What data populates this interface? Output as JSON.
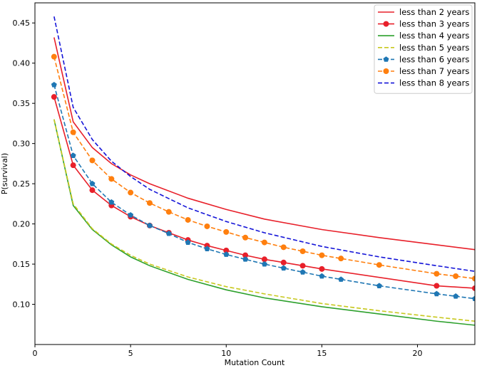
{
  "chart_data": {
    "type": "line",
    "title": "",
    "xlabel": "Mutation Count",
    "ylabel": "P(survival)",
    "xlim": [
      0,
      23
    ],
    "ylim": [
      0.05,
      0.475
    ],
    "xticks": [
      0,
      5,
      10,
      15,
      20
    ],
    "yticks": [
      0.1,
      0.15,
      0.2,
      0.25,
      0.3,
      0.35,
      0.4,
      0.45
    ],
    "grid": false,
    "legend_position": "top-right",
    "series": [
      {
        "name": "less than 2 years",
        "color": "#e8202a",
        "style": "solid",
        "marker": "none",
        "x": [
          1,
          2,
          3,
          4,
          5,
          6,
          8,
          10,
          12,
          15,
          18,
          21,
          23
        ],
        "y": [
          0.432,
          0.327,
          0.295,
          0.275,
          0.261,
          0.25,
          0.232,
          0.218,
          0.206,
          0.193,
          0.183,
          0.174,
          0.168
        ]
      },
      {
        "name": "less than 3 years",
        "color": "#e8202a",
        "style": "solid",
        "marker": "circle",
        "x": [
          1,
          2,
          3,
          4,
          5,
          6,
          7,
          8,
          9,
          10,
          11,
          12,
          13,
          14,
          15,
          21,
          23
        ],
        "y": [
          0.358,
          0.273,
          0.242,
          0.223,
          0.209,
          0.198,
          0.189,
          0.18,
          0.173,
          0.167,
          0.161,
          0.156,
          0.152,
          0.148,
          0.144,
          0.123,
          0.12
        ]
      },
      {
        "name": "less than 4 years",
        "color": "#2ca02c",
        "style": "solid",
        "marker": "none",
        "x": [
          1,
          2,
          3,
          4,
          5,
          6,
          8,
          10,
          12,
          15,
          18,
          21,
          23
        ],
        "y": [
          0.33,
          0.223,
          0.193,
          0.174,
          0.159,
          0.148,
          0.131,
          0.118,
          0.108,
          0.097,
          0.088,
          0.079,
          0.074
        ]
      },
      {
        "name": "less than 5 years",
        "color": "#c8c81e",
        "style": "dashed",
        "marker": "none",
        "x": [
          1,
          2,
          3,
          4,
          5,
          6,
          8,
          10,
          12,
          15,
          18,
          21,
          23
        ],
        "y": [
          0.33,
          0.225,
          0.194,
          0.175,
          0.161,
          0.15,
          0.134,
          0.122,
          0.113,
          0.101,
          0.092,
          0.084,
          0.079
        ]
      },
      {
        "name": "less than 6 years",
        "color": "#1f77b4",
        "style": "dashed",
        "marker": "pentagon",
        "x": [
          1,
          2,
          3,
          4,
          5,
          6,
          7,
          8,
          9,
          10,
          11,
          12,
          13,
          14,
          15,
          16,
          18,
          21,
          22,
          23
        ],
        "y": [
          0.373,
          0.285,
          0.25,
          0.227,
          0.211,
          0.198,
          0.188,
          0.177,
          0.169,
          0.162,
          0.156,
          0.15,
          0.145,
          0.14,
          0.135,
          0.131,
          0.123,
          0.113,
          0.11,
          0.107
        ]
      },
      {
        "name": "less than 7 years",
        "color": "#ff7f0e",
        "style": "dashed",
        "marker": "circle",
        "x": [
          1,
          2,
          3,
          4,
          5,
          6,
          7,
          8,
          9,
          10,
          11,
          12,
          13,
          14,
          15,
          16,
          18,
          21,
          22,
          23
        ],
        "y": [
          0.408,
          0.314,
          0.279,
          0.256,
          0.239,
          0.226,
          0.215,
          0.205,
          0.197,
          0.19,
          0.183,
          0.177,
          0.171,
          0.166,
          0.161,
          0.157,
          0.149,
          0.138,
          0.135,
          0.132
        ]
      },
      {
        "name": "less than 8 years",
        "color": "#1515d8",
        "style": "dashed",
        "marker": "none",
        "x": [
          1,
          2,
          3,
          4,
          5,
          6,
          8,
          10,
          12,
          15,
          18,
          21,
          23
        ],
        "y": [
          0.458,
          0.345,
          0.305,
          0.278,
          0.259,
          0.243,
          0.22,
          0.203,
          0.189,
          0.172,
          0.159,
          0.148,
          0.141
        ]
      }
    ]
  }
}
